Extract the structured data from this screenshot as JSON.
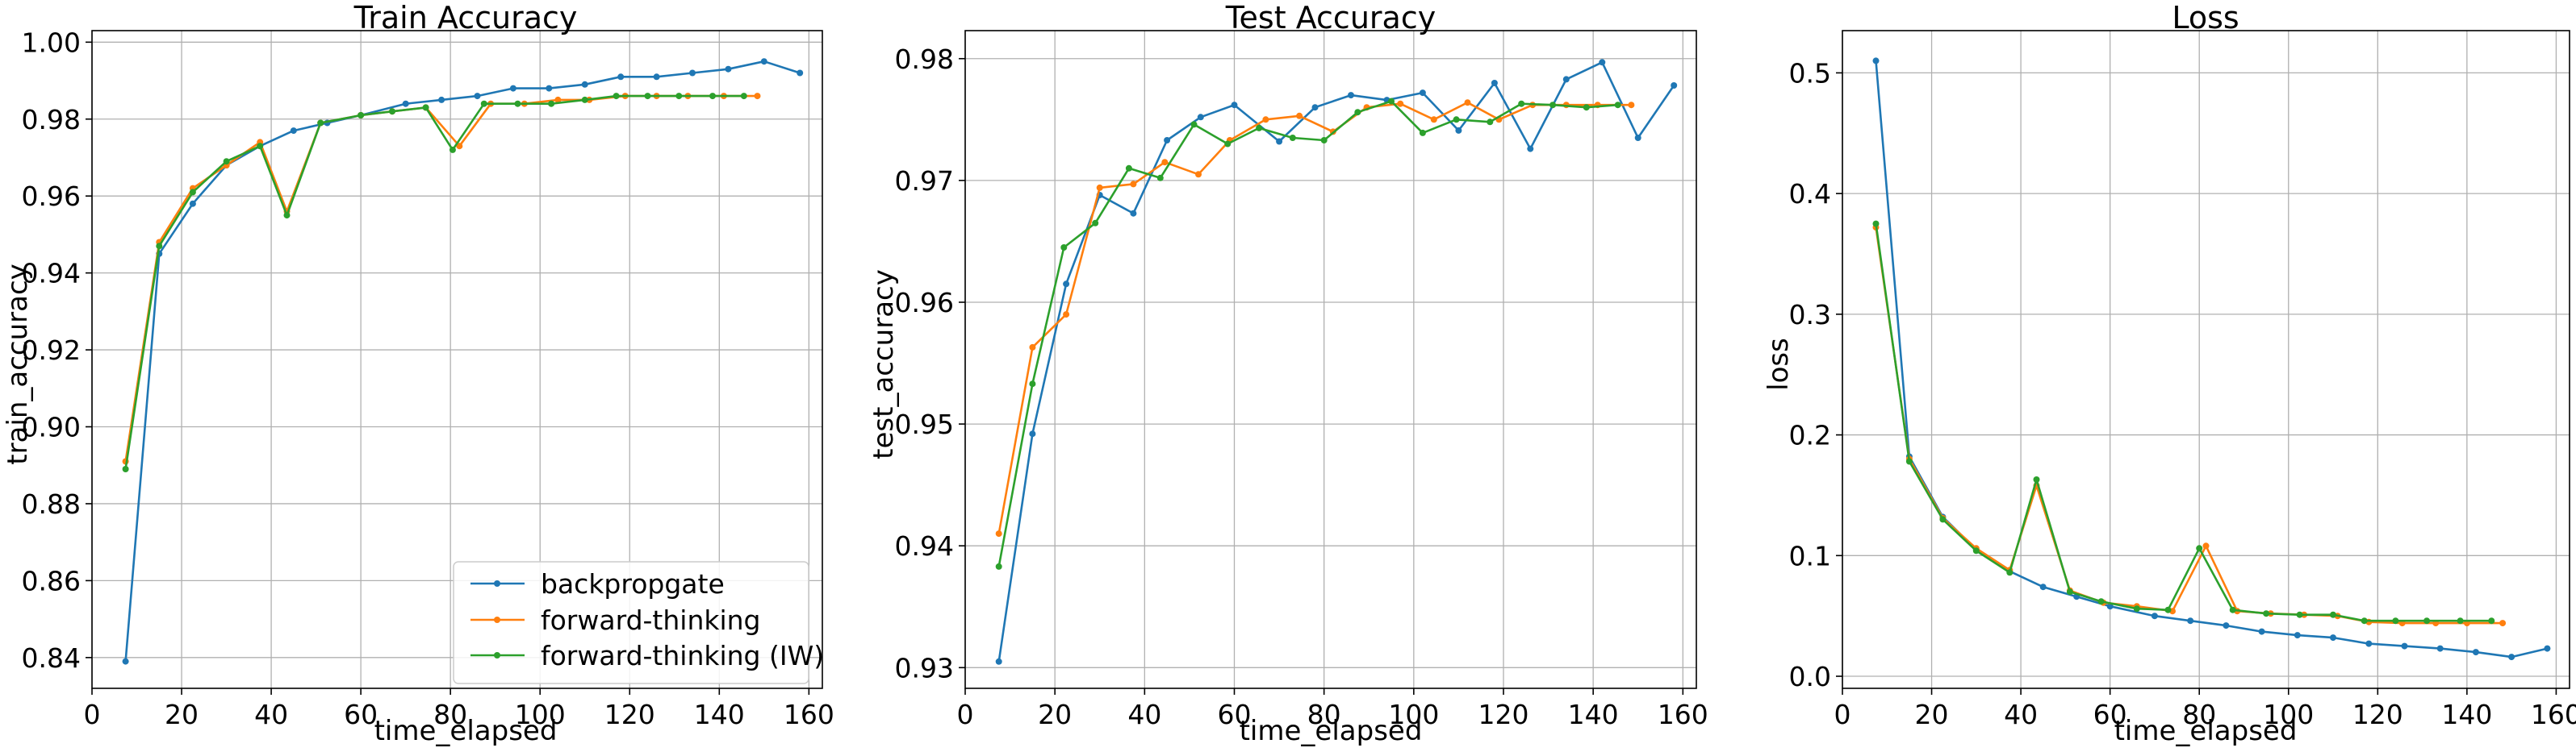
{
  "colors": {
    "backprop": "#1f77b4",
    "forward": "#ff7f0e",
    "forward_iw": "#2ca02c",
    "grid": "#b0b0b0"
  },
  "legend": {
    "placement": "lower-right",
    "entries": [
      "backpropgate",
      "forward-thinking",
      "forward-thinking (IW)"
    ]
  },
  "chart_data": [
    {
      "type": "line",
      "title": "Train Accuracy",
      "xlabel": "time_elapsed",
      "ylabel": "train_accuracy",
      "xlim": [
        0,
        163
      ],
      "ylim": [
        0.832,
        1.003
      ],
      "xticks": [
        0,
        20,
        40,
        60,
        80,
        100,
        120,
        140,
        160
      ],
      "xtick_labels": [
        "0",
        "20",
        "40",
        "60",
        "80",
        "100",
        "120",
        "140",
        "160"
      ],
      "yticks": [
        0.84,
        0.86,
        0.88,
        0.9,
        0.92,
        0.94,
        0.96,
        0.98,
        1.0
      ],
      "ytick_labels": [
        "0.84",
        "0.86",
        "0.88",
        "0.90",
        "0.92",
        "0.94",
        "0.96",
        "0.98",
        "1.00"
      ],
      "grid": true,
      "legend": true,
      "series": [
        {
          "name": "backpropgate",
          "x": [
            7.5,
            15,
            22.5,
            30,
            37.5,
            45,
            52.5,
            60,
            70,
            78,
            86,
            94,
            102,
            110,
            118,
            126,
            134,
            142,
            150,
            158
          ],
          "y": [
            0.839,
            0.945,
            0.958,
            0.968,
            0.973,
            0.977,
            0.979,
            0.981,
            0.984,
            0.985,
            0.986,
            0.988,
            0.988,
            0.989,
            0.991,
            0.991,
            0.992,
            0.993,
            0.995,
            0.992
          ]
        },
        {
          "name": "forward-thinking",
          "x": [
            7.5,
            15,
            22.5,
            30,
            37.5,
            43.5,
            51,
            60,
            67,
            74.5,
            82,
            89,
            96.5,
            104,
            111,
            119,
            126,
            133,
            141,
            148.5
          ],
          "y": [
            0.891,
            0.948,
            0.962,
            0.968,
            0.974,
            0.956,
            0.979,
            0.981,
            0.982,
            0.983,
            0.973,
            0.984,
            0.984,
            0.985,
            0.985,
            0.986,
            0.986,
            0.986,
            0.986,
            0.986
          ]
        },
        {
          "name": "forward-thinking (IW)",
          "x": [
            7.5,
            15,
            22.5,
            30,
            37.5,
            43.5,
            51,
            60,
            67,
            74.5,
            80.5,
            87.5,
            95,
            102.5,
            110,
            117,
            124,
            131,
            138.5,
            145.5
          ],
          "y": [
            0.889,
            0.947,
            0.961,
            0.969,
            0.973,
            0.955,
            0.979,
            0.981,
            0.982,
            0.983,
            0.972,
            0.984,
            0.984,
            0.984,
            0.985,
            0.986,
            0.986,
            0.986,
            0.986,
            0.986
          ]
        }
      ]
    },
    {
      "type": "line",
      "title": "Test Accuracy",
      "xlabel": "time_elapsed",
      "ylabel": "test_accuracy",
      "xlim": [
        0,
        163
      ],
      "ylim": [
        0.9283,
        0.9823
      ],
      "xticks": [
        0,
        20,
        40,
        60,
        80,
        100,
        120,
        140,
        160
      ],
      "xtick_labels": [
        "0",
        "20",
        "40",
        "60",
        "80",
        "100",
        "120",
        "140",
        "160"
      ],
      "yticks": [
        0.93,
        0.94,
        0.95,
        0.96,
        0.97,
        0.98
      ],
      "ytick_labels": [
        "0.93",
        "0.94",
        "0.95",
        "0.96",
        "0.97",
        "0.98"
      ],
      "grid": true,
      "legend": false,
      "series": [
        {
          "name": "backpropgate",
          "x": [
            7.5,
            15,
            22.5,
            30,
            37.5,
            45,
            52.5,
            60,
            70,
            78,
            86,
            94,
            102,
            110,
            118,
            126,
            134,
            142,
            150,
            158
          ],
          "y": [
            0.9305,
            0.9492,
            0.9615,
            0.9688,
            0.9673,
            0.9733,
            0.9752,
            0.9762,
            0.9732,
            0.976,
            0.977,
            0.9766,
            0.9772,
            0.9741,
            0.978,
            0.9726,
            0.9783,
            0.9797,
            0.9735,
            0.9778
          ]
        },
        {
          "name": "forward-thinking",
          "x": [
            7.5,
            15,
            22.5,
            30,
            37.5,
            44.5,
            52,
            59,
            67,
            74.5,
            82,
            89.5,
            97,
            104.5,
            112,
            119,
            126.5,
            134,
            141,
            148.5
          ],
          "y": [
            0.941,
            0.9563,
            0.959,
            0.9694,
            0.9697,
            0.9715,
            0.9705,
            0.9733,
            0.975,
            0.9753,
            0.974,
            0.976,
            0.9763,
            0.975,
            0.9764,
            0.975,
            0.9762,
            0.9762,
            0.9762,
            0.9762
          ]
        },
        {
          "name": "forward-thinking (IW)",
          "x": [
            7.5,
            15,
            22,
            29,
            36.5,
            43.5,
            51,
            58.5,
            65.5,
            73,
            80,
            87.5,
            95,
            102,
            109.5,
            117,
            124,
            131,
            138.5,
            145.5
          ],
          "y": [
            0.9383,
            0.9533,
            0.9645,
            0.9665,
            0.971,
            0.9702,
            0.9746,
            0.973,
            0.9743,
            0.9735,
            0.9733,
            0.9756,
            0.9765,
            0.9739,
            0.975,
            0.9748,
            0.9763,
            0.9762,
            0.976,
            0.9762
          ]
        }
      ]
    },
    {
      "type": "line",
      "title": "Loss",
      "xlabel": "time_elapsed",
      "ylabel": "loss",
      "xlim": [
        0,
        163
      ],
      "ylim": [
        -0.01,
        0.535
      ],
      "xticks": [
        0,
        20,
        40,
        60,
        80,
        100,
        120,
        140,
        160
      ],
      "xtick_labels": [
        "0",
        "20",
        "40",
        "60",
        "80",
        "100",
        "120",
        "140",
        "160"
      ],
      "yticks": [
        0.0,
        0.1,
        0.2,
        0.3,
        0.4,
        0.5
      ],
      "ytick_labels": [
        "0.0",
        "0.1",
        "0.2",
        "0.3",
        "0.4",
        "0.5"
      ],
      "grid": true,
      "legend": false,
      "series": [
        {
          "name": "backpropgate",
          "x": [
            7.5,
            15,
            22.5,
            30,
            37.5,
            45,
            52.5,
            60,
            70,
            78,
            86,
            94,
            102,
            110,
            118,
            126,
            134,
            142,
            150,
            158
          ],
          "y": [
            0.51,
            0.182,
            0.132,
            0.105,
            0.087,
            0.074,
            0.066,
            0.058,
            0.05,
            0.046,
            0.042,
            0.037,
            0.034,
            0.032,
            0.027,
            0.025,
            0.023,
            0.02,
            0.016,
            0.023
          ]
        },
        {
          "name": "forward-thinking",
          "x": [
            7.5,
            15,
            22.5,
            30,
            37.5,
            43.5,
            51,
            58.5,
            66,
            74,
            81.5,
            88.5,
            96,
            103.5,
            111,
            118,
            125.5,
            133,
            140,
            148
          ],
          "y": [
            0.372,
            0.18,
            0.131,
            0.106,
            0.088,
            0.158,
            0.071,
            0.061,
            0.058,
            0.054,
            0.108,
            0.054,
            0.052,
            0.051,
            0.05,
            0.045,
            0.044,
            0.044,
            0.044,
            0.044
          ]
        },
        {
          "name": "forward-thinking (IW)",
          "x": [
            7.5,
            15,
            22.5,
            30,
            37.5,
            43.5,
            51,
            58,
            66,
            73,
            80,
            87.5,
            95,
            102.5,
            110,
            117,
            124,
            131,
            138.5,
            145.5
          ],
          "y": [
            0.375,
            0.178,
            0.13,
            0.104,
            0.086,
            0.163,
            0.07,
            0.062,
            0.056,
            0.055,
            0.106,
            0.055,
            0.052,
            0.051,
            0.051,
            0.046,
            0.046,
            0.046,
            0.046,
            0.046
          ]
        }
      ]
    }
  ]
}
